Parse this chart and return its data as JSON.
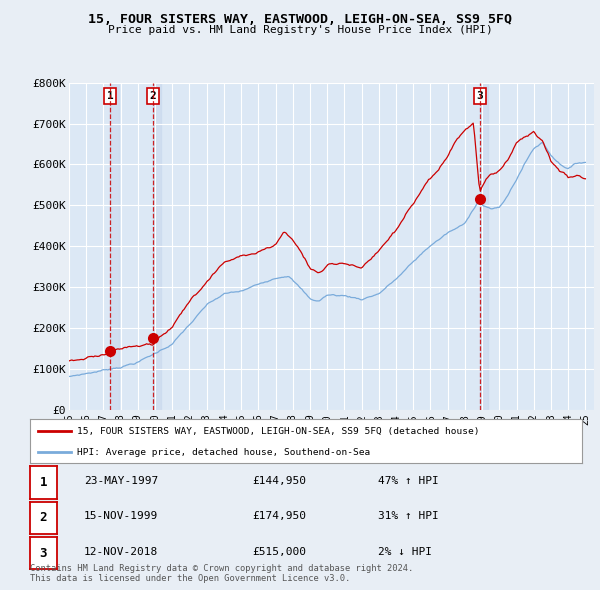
{
  "title": "15, FOUR SISTERS WAY, EASTWOOD, LEIGH-ON-SEA, SS9 5FQ",
  "subtitle": "Price paid vs. HM Land Registry's House Price Index (HPI)",
  "ylim": [
    0,
    800000
  ],
  "yticks": [
    0,
    100000,
    200000,
    300000,
    400000,
    500000,
    600000,
    700000,
    800000
  ],
  "ytick_labels": [
    "£0",
    "£100K",
    "£200K",
    "£300K",
    "£400K",
    "£500K",
    "£600K",
    "£700K",
    "£800K"
  ],
  "background_color": "#e8eef5",
  "plot_bg": "#dce8f5",
  "grid_color": "#ffffff",
  "sale_dates": [
    1997.38,
    1999.87,
    2018.86
  ],
  "sale_prices": [
    144950,
    174950,
    515000
  ],
  "sale_labels": [
    "1",
    "2",
    "3"
  ],
  "legend_label_red": "15, FOUR SISTERS WAY, EASTWOOD, LEIGH-ON-SEA, SS9 5FQ (detached house)",
  "legend_label_blue": "HPI: Average price, detached house, Southend-on-Sea",
  "table_rows": [
    {
      "num": "1",
      "date": "23-MAY-1997",
      "price": "£144,950",
      "hpi": "47% ↑ HPI"
    },
    {
      "num": "2",
      "date": "15-NOV-1999",
      "price": "£174,950",
      "hpi": "31% ↑ HPI"
    },
    {
      "num": "3",
      "date": "12-NOV-2018",
      "price": "£515,000",
      "hpi": "2% ↓ HPI"
    }
  ],
  "footer": "Contains HM Land Registry data © Crown copyright and database right 2024.\nThis data is licensed under the Open Government Licence v3.0.",
  "red_color": "#cc0000",
  "blue_color": "#7aabdb",
  "dashed_color": "#cc0000",
  "shade_color": "#c8d8ee"
}
